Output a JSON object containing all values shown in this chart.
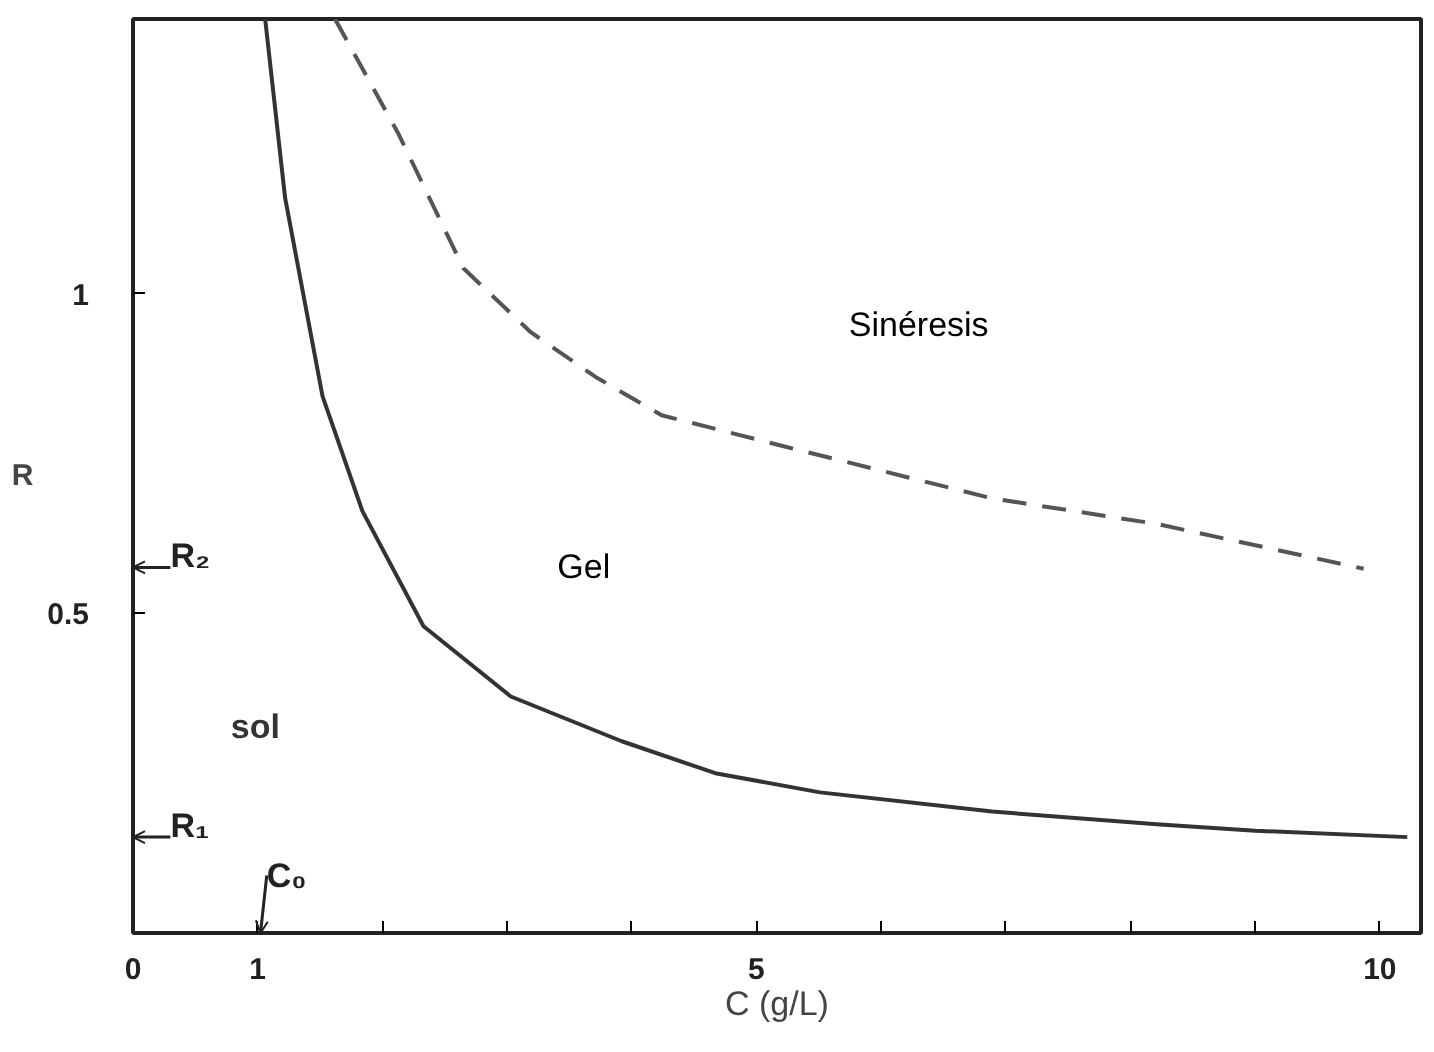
{
  "chart_data": {
    "type": "line",
    "xlabel": "C (g/L)",
    "ylabel": "R",
    "xlim": [
      0,
      10.33
    ],
    "ylim": [
      0,
      1.43
    ],
    "xticks": [
      0,
      1,
      {
        "value": 2,
        "label": null
      },
      {
        "value": 3,
        "label": null
      },
      {
        "value": 4,
        "label": null
      },
      5,
      {
        "value": 6,
        "label": null
      },
      {
        "value": 7,
        "label": null
      },
      {
        "value": 8,
        "label": null
      },
      {
        "value": 9,
        "label": null
      },
      10
    ],
    "yticks": [
      0.5,
      1
    ],
    "grid": false,
    "marker": "none",
    "series": [
      {
        "color": "#333333",
        "line_style": "solid",
        "x": [
          1.06,
          1.22,
          1.52,
          1.84,
          2.33,
          3.03,
          3.92,
          4.67,
          5.51,
          6.89,
          8.21,
          9.0,
          10.22
        ],
        "values": [
          1.43,
          1.15,
          0.84,
          0.66,
          0.48,
          0.37,
          0.3,
          0.25,
          0.22,
          0.19,
          0.17,
          0.16,
          0.15
        ]
      },
      {
        "color": "#555555",
        "line_style": "dashed",
        "x": [
          1.62,
          2.13,
          2.65,
          3.19,
          3.71,
          4.24,
          5.25,
          6.89,
          8.21,
          9.87
        ],
        "values": [
          1.43,
          1.25,
          1.04,
          0.94,
          0.87,
          0.81,
          0.76,
          0.68,
          0.64,
          0.57
        ]
      }
    ],
    "annotations": [
      "Sinéresis",
      "Gel",
      "sol",
      "R₂",
      "R₁",
      "C₀"
    ]
  }
}
